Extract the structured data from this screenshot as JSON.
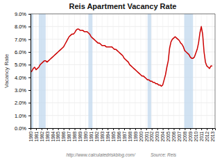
{
  "chart_data": {
    "type": "line",
    "title": "Reis Apartment Vacancy Rate",
    "ylabel": "Vacancy Rate",
    "annotations": [
      "http://www.calculatedriskblog.com/",
      "Source: Reis"
    ],
    "color": "#cc0000",
    "grid": true,
    "xlim": [
      1980,
      2013.5
    ],
    "xticks": [
      1980,
      1981,
      1982,
      1983,
      1984,
      1985,
      1986,
      1987,
      1988,
      1989,
      1990,
      1991,
      1992,
      1993,
      1994,
      1995,
      1996,
      1997,
      1998,
      1999,
      2000,
      2001,
      2002,
      2003,
      2004,
      2005,
      2006,
      2007,
      2008,
      2009,
      2010,
      2011,
      2012,
      2013
    ],
    "ylim": [
      0.0,
      0.09
    ],
    "yticks": [
      {
        "value": 0.0,
        "label": "0.0%"
      },
      {
        "value": 0.01,
        "label": "1.0%"
      },
      {
        "value": 0.02,
        "label": "2.0%"
      },
      {
        "value": 0.03,
        "label": "3.0%"
      },
      {
        "value": 0.04,
        "label": "4.0%"
      },
      {
        "value": 0.05,
        "label": "5.0%"
      },
      {
        "value": 0.06,
        "label": "6.0%"
      },
      {
        "value": 0.07,
        "label": "7.0%"
      },
      {
        "value": 0.08,
        "label": "8.0%"
      },
      {
        "value": 0.09,
        "label": "9.0%"
      }
    ],
    "recession_bands": [
      [
        1980.0,
        1980.5
      ],
      [
        1981.5,
        1982.75
      ],
      [
        1990.5,
        1991.25
      ],
      [
        2001.25,
        2001.9
      ],
      [
        2007.9,
        2009.5
      ]
    ],
    "x": [
      1980.0,
      1980.25,
      1980.5,
      1980.75,
      1981.0,
      1981.25,
      1981.5,
      1981.75,
      1982.0,
      1982.25,
      1982.5,
      1982.75,
      1983.0,
      1983.25,
      1983.5,
      1983.75,
      1984.0,
      1984.25,
      1984.5,
      1984.75,
      1985.0,
      1985.25,
      1985.5,
      1985.75,
      1986.0,
      1986.25,
      1986.5,
      1986.75,
      1987.0,
      1987.25,
      1987.5,
      1987.75,
      1988.0,
      1988.25,
      1988.5,
      1988.75,
      1989.0,
      1989.25,
      1989.5,
      1989.75,
      1990.0,
      1990.25,
      1990.5,
      1990.75,
      1991.0,
      1991.25,
      1991.5,
      1991.75,
      1992.0,
      1992.25,
      1992.5,
      1992.75,
      1993.0,
      1993.25,
      1993.5,
      1993.75,
      1994.0,
      1994.25,
      1994.5,
      1994.75,
      1995.0,
      1995.25,
      1995.5,
      1995.75,
      1996.0,
      1996.25,
      1996.5,
      1996.75,
      1997.0,
      1997.25,
      1997.5,
      1997.75,
      1998.0,
      1998.25,
      1998.5,
      1998.75,
      1999.0,
      1999.25,
      1999.5,
      1999.75,
      2000.0,
      2000.25,
      2000.5,
      2000.75,
      2001.0,
      2001.25,
      2001.5,
      2001.75,
      2002.0,
      2002.25,
      2002.5,
      2002.75,
      2003.0,
      2003.25,
      2003.5,
      2003.75,
      2004.0,
      2004.25,
      2004.5,
      2004.75,
      2005.0,
      2005.25,
      2005.5,
      2005.75,
      2006.0,
      2006.25,
      2006.5,
      2006.75,
      2007.0,
      2007.25,
      2007.5,
      2007.75,
      2008.0,
      2008.25,
      2008.5,
      2008.75,
      2009.0,
      2009.25,
      2009.5,
      2009.75,
      2010.0,
      2010.25,
      2010.5,
      2010.75,
      2011.0,
      2011.25,
      2011.5,
      2011.75,
      2012.0,
      2012.25,
      2012.5,
      2012.75,
      2013.0
    ],
    "values": [
      0.044,
      0.045,
      0.047,
      0.048,
      0.046,
      0.047,
      0.048,
      0.05,
      0.051,
      0.052,
      0.053,
      0.053,
      0.052,
      0.053,
      0.054,
      0.055,
      0.056,
      0.057,
      0.058,
      0.059,
      0.06,
      0.061,
      0.062,
      0.063,
      0.064,
      0.066,
      0.068,
      0.07,
      0.072,
      0.073,
      0.074,
      0.074,
      0.075,
      0.077,
      0.078,
      0.078,
      0.077,
      0.077,
      0.077,
      0.076,
      0.076,
      0.076,
      0.075,
      0.074,
      0.072,
      0.071,
      0.07,
      0.069,
      0.068,
      0.067,
      0.067,
      0.066,
      0.065,
      0.065,
      0.065,
      0.064,
      0.064,
      0.064,
      0.064,
      0.064,
      0.063,
      0.062,
      0.062,
      0.061,
      0.06,
      0.059,
      0.058,
      0.057,
      0.055,
      0.054,
      0.053,
      0.052,
      0.05,
      0.049,
      0.048,
      0.047,
      0.046,
      0.045,
      0.044,
      0.043,
      0.042,
      0.041,
      0.041,
      0.04,
      0.039,
      0.038,
      0.038,
      0.037,
      0.037,
      0.036,
      0.036,
      0.035,
      0.035,
      0.034,
      0.034,
      0.033,
      0.034,
      0.038,
      0.042,
      0.048,
      0.053,
      0.063,
      0.068,
      0.07,
      0.071,
      0.072,
      0.071,
      0.07,
      0.069,
      0.067,
      0.066,
      0.064,
      0.061,
      0.06,
      0.059,
      0.058,
      0.056,
      0.055,
      0.055,
      0.056,
      0.059,
      0.062,
      0.067,
      0.075,
      0.08,
      0.074,
      0.06,
      0.052,
      0.049,
      0.048,
      0.047,
      0.049,
      0.049
    ]
  }
}
